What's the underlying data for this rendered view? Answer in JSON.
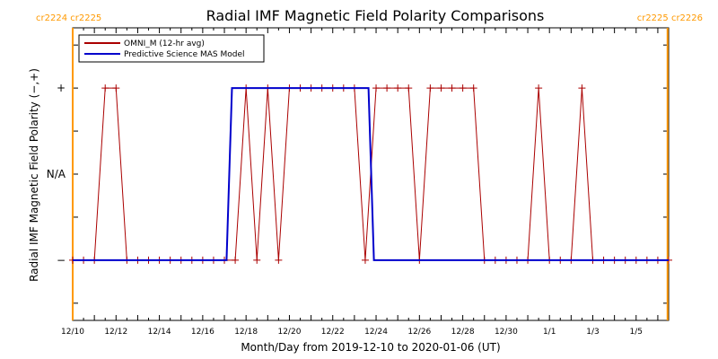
{
  "chart_data": {
    "type": "line",
    "title": "Radial IMF Magnetic Field Polarity Comparisons",
    "xlabel": "Month/Day from 2019-12-10 to 2020-01-06 (UT)",
    "ylabel": "Radial IMF Magnetic Field Polarity (−,+)",
    "x_unit": "days",
    "xlim": [
      0,
      27.5
    ],
    "ylim": [
      -1.7,
      1.7
    ],
    "x_tick_labels": [
      {
        "x": 0,
        "label": "12/10"
      },
      {
        "x": 2,
        "label": "12/12"
      },
      {
        "x": 4,
        "label": "12/14"
      },
      {
        "x": 6,
        "label": "12/16"
      },
      {
        "x": 8,
        "label": "12/18"
      },
      {
        "x": 10,
        "label": "12/20"
      },
      {
        "x": 12,
        "label": "12/22"
      },
      {
        "x": 14,
        "label": "12/24"
      },
      {
        "x": 16,
        "label": "12/26"
      },
      {
        "x": 18,
        "label": "12/28"
      },
      {
        "x": 20,
        "label": "12/30"
      },
      {
        "x": 22,
        "label": "1/1"
      },
      {
        "x": 24,
        "label": "1/3"
      },
      {
        "x": 26,
        "label": "1/5"
      }
    ],
    "y_tick_labels": [
      {
        "y": 1,
        "label": "+"
      },
      {
        "y": 0,
        "label": "N/A"
      },
      {
        "y": -1,
        "label": "−"
      }
    ],
    "carrington_markers": [
      {
        "x": 0,
        "label": "cr2224 cr2225",
        "side": "left",
        "color": "#ff9900"
      },
      {
        "x": 27.45,
        "label": "cr2225 cr2226",
        "side": "right",
        "color": "#ff9900"
      }
    ],
    "legend": {
      "placement": "top-left"
    },
    "series": [
      {
        "name": "OMNI_M (12-hr avg)",
        "color": "#aa0000",
        "marker": "plus",
        "x": [
          0,
          0.5,
          1,
          1.5,
          2,
          2.5,
          3,
          3.5,
          4,
          4.5,
          5,
          5.5,
          6,
          6.5,
          7,
          7.5,
          8,
          8.5,
          9,
          9.5,
          10,
          10.5,
          11,
          11.5,
          12,
          12.5,
          13,
          13.5,
          14,
          14.5,
          15,
          15.5,
          16,
          16.5,
          17,
          17.5,
          18,
          18.5,
          19,
          19.5,
          20,
          20.5,
          21,
          21.5,
          22,
          22.5,
          23,
          23.5,
          24,
          24.5,
          25,
          25.5,
          26,
          26.5,
          27,
          27.5
        ],
        "y": [
          -1,
          -1,
          -1,
          1,
          1,
          -1,
          -1,
          -1,
          -1,
          -1,
          -1,
          -1,
          -1,
          -1,
          -1,
          -1,
          1,
          -1,
          1,
          -1,
          1,
          1,
          1,
          1,
          1,
          1,
          1,
          -1,
          1,
          1,
          1,
          1,
          -1,
          1,
          1,
          1,
          1,
          1,
          -1,
          -1,
          -1,
          -1,
          -1,
          1,
          -1,
          -1,
          -1,
          1,
          -1,
          -1,
          -1,
          -1,
          -1,
          -1,
          -1,
          -1
        ]
      },
      {
        "name": "Predictive Science MAS Model",
        "color": "#0000cc",
        "marker": "none",
        "x": [
          0,
          7.1,
          7.35,
          13.65,
          13.9,
          27.5
        ],
        "y": [
          -1,
          -1,
          1,
          1,
          -1,
          -1
        ]
      }
    ]
  }
}
